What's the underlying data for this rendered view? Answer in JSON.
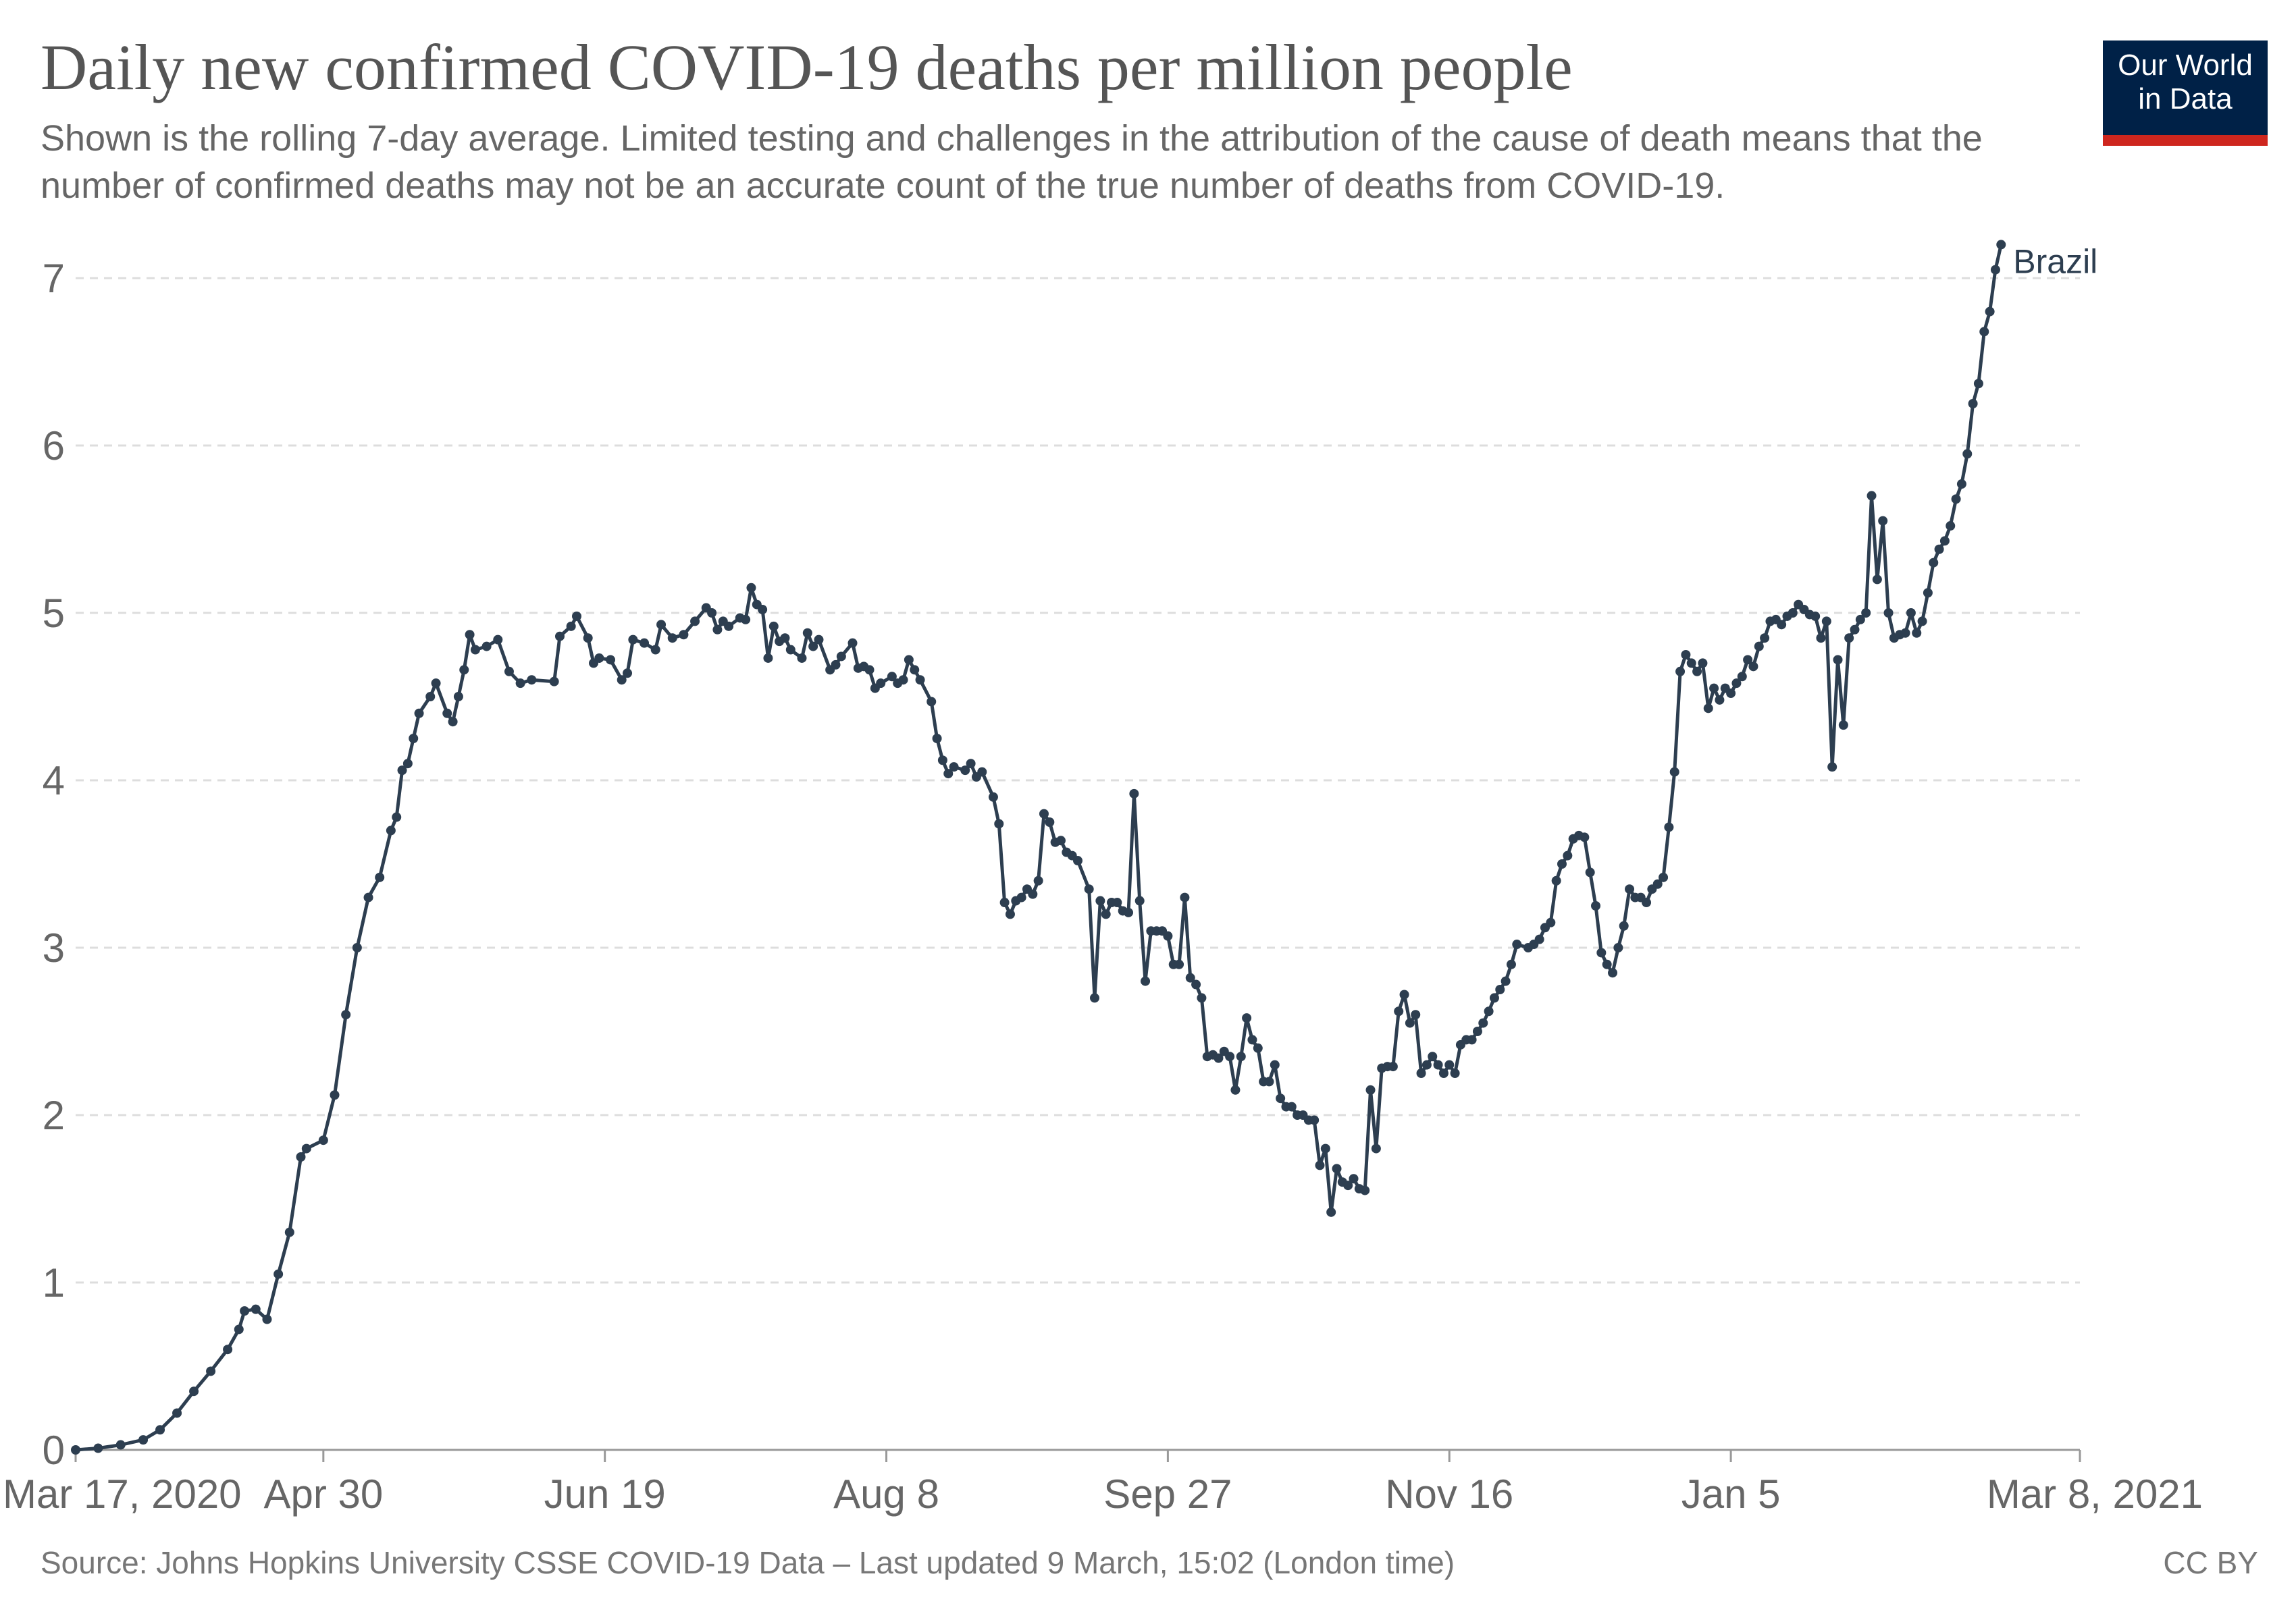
{
  "header": {
    "title": "Daily new confirmed COVID-19 deaths per million people",
    "subtitle": "Shown is the rolling 7-day average. Limited testing and challenges in the attribution of the cause of death means that the number of confirmed deaths may not be an accurate count of the true number of deaths from COVID-19."
  },
  "logo": {
    "line1": "Our World",
    "line2": "in Data"
  },
  "footer": {
    "source": "Source: Johns Hopkins University CSSE COVID-19 Data – Last updated 9 March, 15:02 (London time)",
    "license": "CC BY"
  },
  "colors": {
    "series": "#2d3e50",
    "grid": "#dddddd",
    "logo_bg": "#002147",
    "logo_accent": "#ce261e"
  },
  "chart_data": {
    "type": "line",
    "title": "Daily new confirmed COVID-19 deaths per million people",
    "xlabel": "",
    "ylabel": "",
    "ylim": [
      0,
      7
    ],
    "xlim_days": [
      0,
      356
    ],
    "grid": true,
    "yticks": [
      0,
      1,
      2,
      3,
      4,
      5,
      6,
      7
    ],
    "xticks": [
      {
        "day": 0,
        "label": "Mar 17, 2020"
      },
      {
        "day": 44,
        "label": "Apr 30"
      },
      {
        "day": 94,
        "label": "Jun 19"
      },
      {
        "day": 144,
        "label": "Aug 8"
      },
      {
        "day": 194,
        "label": "Sep 27"
      },
      {
        "day": 244,
        "label": "Nov 16"
      },
      {
        "day": 294,
        "label": "Jan 5"
      },
      {
        "day": 356,
        "label": "Mar 8, 2021"
      }
    ],
    "series": [
      {
        "name": "Brazil",
        "points": [
          [
            0,
            0
          ],
          [
            4,
            0.01
          ],
          [
            8,
            0.03
          ],
          [
            12,
            0.06
          ],
          [
            15,
            0.12
          ],
          [
            18,
            0.22
          ],
          [
            21,
            0.35
          ],
          [
            24,
            0.47
          ],
          [
            27,
            0.6
          ],
          [
            29,
            0.72
          ],
          [
            30,
            0.83
          ],
          [
            32,
            0.84
          ],
          [
            34,
            0.78
          ],
          [
            36,
            1.05
          ],
          [
            38,
            1.3
          ],
          [
            40,
            1.75
          ],
          [
            41,
            1.8
          ],
          [
            44,
            1.85
          ],
          [
            46,
            2.12
          ],
          [
            48,
            2.6
          ],
          [
            50,
            3.0
          ],
          [
            52,
            3.3
          ],
          [
            54,
            3.42
          ],
          [
            56,
            3.7
          ],
          [
            57,
            3.78
          ],
          [
            58,
            4.06
          ],
          [
            59,
            4.1
          ],
          [
            60,
            4.25
          ],
          [
            61,
            4.4
          ],
          [
            63,
            4.5
          ],
          [
            64,
            4.58
          ],
          [
            66,
            4.4
          ],
          [
            67,
            4.35
          ],
          [
            68,
            4.5
          ],
          [
            69,
            4.66
          ],
          [
            70,
            4.87
          ],
          [
            71,
            4.78
          ],
          [
            73,
            4.8
          ],
          [
            75,
            4.84
          ],
          [
            77,
            4.65
          ],
          [
            79,
            4.58
          ],
          [
            81,
            4.6
          ],
          [
            85,
            4.59
          ],
          [
            86,
            4.86
          ],
          [
            88,
            4.92
          ],
          [
            89,
            4.98
          ],
          [
            91,
            4.85
          ],
          [
            92,
            4.7
          ],
          [
            93,
            4.73
          ],
          [
            95,
            4.72
          ],
          [
            97,
            4.6
          ],
          [
            98,
            4.64
          ],
          [
            99,
            4.84
          ],
          [
            101,
            4.82
          ],
          [
            103,
            4.78
          ],
          [
            104,
            4.93
          ],
          [
            106,
            4.85
          ],
          [
            108,
            4.87
          ],
          [
            110,
            4.95
          ],
          [
            112,
            5.03
          ],
          [
            113,
            5.0
          ],
          [
            114,
            4.9
          ],
          [
            115,
            4.95
          ],
          [
            116,
            4.92
          ],
          [
            118,
            4.97
          ],
          [
            119,
            4.96
          ],
          [
            120,
            5.15
          ],
          [
            121,
            5.05
          ],
          [
            122,
            5.02
          ],
          [
            123,
            4.73
          ],
          [
            124,
            4.92
          ],
          [
            125,
            4.83
          ],
          [
            126,
            4.85
          ],
          [
            127,
            4.78
          ],
          [
            129,
            4.73
          ],
          [
            130,
            4.88
          ],
          [
            131,
            4.8
          ],
          [
            132,
            4.84
          ],
          [
            134,
            4.66
          ],
          [
            135,
            4.69
          ],
          [
            136,
            4.74
          ],
          [
            138,
            4.82
          ],
          [
            139,
            4.67
          ],
          [
            140,
            4.68
          ],
          [
            141,
            4.66
          ],
          [
            142,
            4.55
          ],
          [
            143,
            4.58
          ],
          [
            145,
            4.62
          ],
          [
            146,
            4.58
          ],
          [
            147,
            4.6
          ],
          [
            148,
            4.72
          ],
          [
            149,
            4.66
          ],
          [
            150,
            4.6
          ],
          [
            152,
            4.47
          ],
          [
            153,
            4.25
          ],
          [
            154,
            4.12
          ],
          [
            155,
            4.04
          ],
          [
            156,
            4.08
          ],
          [
            158,
            4.06
          ],
          [
            159,
            4.1
          ],
          [
            160,
            4.02
          ],
          [
            161,
            4.05
          ],
          [
            163,
            3.9
          ],
          [
            164,
            3.74
          ],
          [
            165,
            3.27
          ],
          [
            166,
            3.2
          ],
          [
            167,
            3.28
          ],
          [
            168,
            3.3
          ],
          [
            169,
            3.35
          ],
          [
            170,
            3.32
          ],
          [
            171,
            3.4
          ],
          [
            172,
            3.8
          ],
          [
            173,
            3.75
          ],
          [
            174,
            3.63
          ],
          [
            175,
            3.64
          ],
          [
            176,
            3.57
          ],
          [
            177,
            3.55
          ],
          [
            178,
            3.52
          ],
          [
            180,
            3.35
          ],
          [
            181,
            2.7
          ],
          [
            182,
            3.28
          ],
          [
            183,
            3.2
          ],
          [
            184,
            3.27
          ],
          [
            185,
            3.27
          ],
          [
            186,
            3.22
          ],
          [
            187,
            3.21
          ],
          [
            188,
            3.92
          ],
          [
            189,
            3.28
          ],
          [
            190,
            2.8
          ],
          [
            191,
            3.1
          ],
          [
            192,
            3.1
          ],
          [
            193,
            3.1
          ],
          [
            194,
            3.07
          ],
          [
            195,
            2.9
          ],
          [
            196,
            2.9
          ],
          [
            197,
            3.3
          ],
          [
            198,
            2.82
          ],
          [
            199,
            2.78
          ],
          [
            200,
            2.7
          ],
          [
            201,
            2.35
          ],
          [
            202,
            2.36
          ],
          [
            203,
            2.34
          ],
          [
            204,
            2.38
          ],
          [
            205,
            2.35
          ],
          [
            206,
            2.15
          ],
          [
            207,
            2.35
          ],
          [
            208,
            2.58
          ],
          [
            209,
            2.45
          ],
          [
            210,
            2.4
          ],
          [
            211,
            2.2
          ],
          [
            212,
            2.2
          ],
          [
            213,
            2.3
          ],
          [
            214,
            2.1
          ],
          [
            215,
            2.05
          ],
          [
            216,
            2.05
          ],
          [
            217,
            2.0
          ],
          [
            218,
            2.0
          ],
          [
            219,
            1.97
          ],
          [
            220,
            1.97
          ],
          [
            221,
            1.7
          ],
          [
            222,
            1.8
          ],
          [
            223,
            1.42
          ],
          [
            224,
            1.68
          ],
          [
            225,
            1.6
          ],
          [
            226,
            1.58
          ],
          [
            227,
            1.62
          ],
          [
            228,
            1.56
          ],
          [
            229,
            1.55
          ],
          [
            230,
            2.15
          ],
          [
            231,
            1.8
          ],
          [
            232,
            2.28
          ],
          [
            233,
            2.29
          ],
          [
            234,
            2.29
          ],
          [
            235,
            2.62
          ],
          [
            236,
            2.72
          ],
          [
            237,
            2.55
          ],
          [
            238,
            2.6
          ],
          [
            239,
            2.25
          ],
          [
            240,
            2.3
          ],
          [
            241,
            2.35
          ],
          [
            242,
            2.3
          ],
          [
            243,
            2.25
          ],
          [
            244,
            2.3
          ],
          [
            245,
            2.25
          ],
          [
            246,
            2.42
          ],
          [
            247,
            2.45
          ],
          [
            248,
            2.45
          ],
          [
            249,
            2.5
          ],
          [
            250,
            2.55
          ],
          [
            251,
            2.62
          ],
          [
            252,
            2.7
          ],
          [
            253,
            2.75
          ],
          [
            254,
            2.8
          ],
          [
            255,
            2.9
          ],
          [
            256,
            3.02
          ],
          [
            258,
            3.0
          ],
          [
            259,
            3.02
          ],
          [
            260,
            3.05
          ],
          [
            261,
            3.12
          ],
          [
            262,
            3.15
          ],
          [
            263,
            3.4
          ],
          [
            264,
            3.5
          ],
          [
            265,
            3.55
          ],
          [
            266,
            3.65
          ],
          [
            267,
            3.67
          ],
          [
            268,
            3.66
          ],
          [
            269,
            3.45
          ],
          [
            270,
            3.25
          ],
          [
            271,
            2.97
          ],
          [
            272,
            2.9
          ],
          [
            273,
            2.85
          ],
          [
            274,
            3.0
          ],
          [
            275,
            3.13
          ],
          [
            276,
            3.35
          ],
          [
            277,
            3.3
          ],
          [
            278,
            3.3
          ],
          [
            279,
            3.27
          ],
          [
            280,
            3.35
          ],
          [
            281,
            3.38
          ],
          [
            282,
            3.42
          ],
          [
            283,
            3.72
          ],
          [
            284,
            4.05
          ],
          [
            285,
            4.65
          ],
          [
            286,
            4.75
          ],
          [
            287,
            4.7
          ],
          [
            288,
            4.65
          ],
          [
            289,
            4.7
          ],
          [
            290,
            4.43
          ],
          [
            291,
            4.55
          ],
          [
            292,
            4.48
          ],
          [
            293,
            4.55
          ],
          [
            294,
            4.52
          ],
          [
            295,
            4.58
          ],
          [
            296,
            4.62
          ],
          [
            297,
            4.72
          ],
          [
            298,
            4.68
          ],
          [
            299,
            4.8
          ],
          [
            300,
            4.85
          ],
          [
            301,
            4.95
          ],
          [
            302,
            4.96
          ],
          [
            303,
            4.93
          ],
          [
            304,
            4.98
          ],
          [
            305,
            5.0
          ],
          [
            306,
            5.05
          ],
          [
            307,
            5.02
          ],
          [
            308,
            4.99
          ],
          [
            309,
            4.98
          ],
          [
            310,
            4.85
          ],
          [
            311,
            4.95
          ],
          [
            312,
            4.08
          ],
          [
            313,
            4.72
          ],
          [
            314,
            4.33
          ],
          [
            315,
            4.85
          ],
          [
            316,
            4.9
          ],
          [
            317,
            4.96
          ],
          [
            318,
            5.0
          ],
          [
            319,
            5.7
          ],
          [
            320,
            5.2
          ],
          [
            321,
            5.55
          ],
          [
            322,
            5.0
          ],
          [
            323,
            4.85
          ],
          [
            324,
            4.87
          ],
          [
            325,
            4.88
          ],
          [
            326,
            5.0
          ],
          [
            327,
            4.88
          ],
          [
            328,
            4.95
          ],
          [
            329,
            5.12
          ],
          [
            330,
            5.3
          ],
          [
            331,
            5.38
          ],
          [
            332,
            5.43
          ],
          [
            333,
            5.52
          ],
          [
            334,
            5.68
          ],
          [
            335,
            5.77
          ],
          [
            336,
            5.95
          ],
          [
            337,
            6.25
          ],
          [
            338,
            6.37
          ],
          [
            339,
            6.68
          ],
          [
            340,
            6.8
          ],
          [
            341,
            7.05
          ],
          [
            342,
            7.2
          ]
        ]
      }
    ]
  }
}
